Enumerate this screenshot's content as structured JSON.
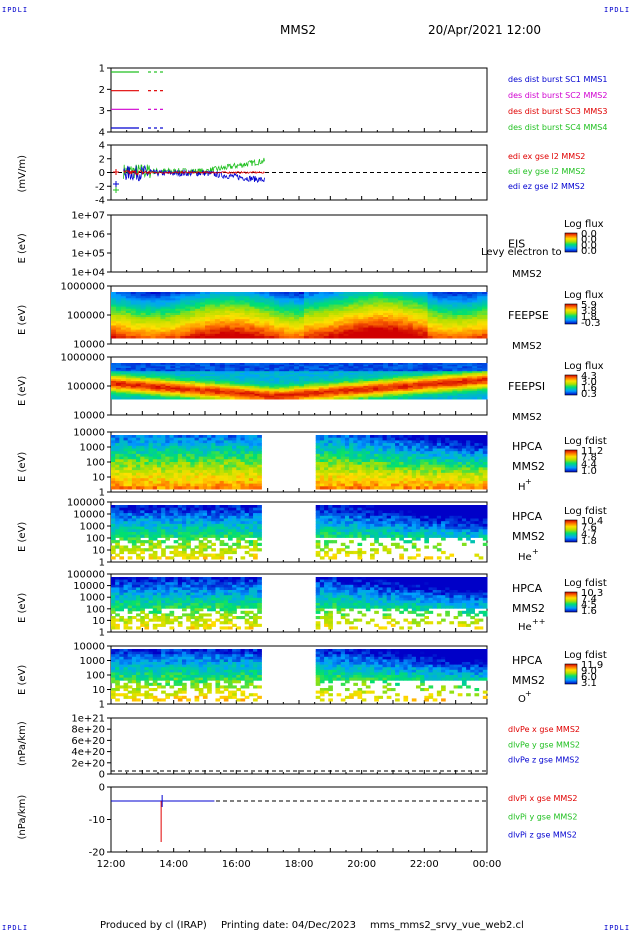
{
  "header": {
    "corner_tl": "IPDLI",
    "corner_tr": "IPDLI",
    "corner_bl": "IPDLI",
    "corner_br": "IPDLI",
    "spacecraft": "MMS2",
    "datetime": "20/Apr/2021 12:00"
  },
  "footer": {
    "produced_by": "Produced by cl (IRAP)",
    "printing_date": "Printing date: 04/Dec/2023",
    "script": "mms_mms2_srvy_vue_web2.cl"
  },
  "colors": {
    "red": "#e00000",
    "magenta": "#d000d0",
    "green": "#20c020",
    "blue": "#0000d0"
  },
  "chart_data": [
    {
      "type": "line",
      "panel": "burst",
      "yticks": [
        "1",
        "2",
        "3",
        "4"
      ],
      "ylim": [
        0.5,
        4.5
      ],
      "legend": [
        "des dist burst SC1 MMS1",
        "des dist burst SC2 MMS2",
        "des dist burst SC3 MMS3",
        "des dist burst SC4 MMS4"
      ],
      "legend_colors": [
        "#0000d0",
        "#d000d0",
        "#e00000",
        "#20c020"
      ]
    },
    {
      "type": "line",
      "panel": "edi",
      "ylabel": "(mV/m)",
      "yticks": [
        "4",
        "2",
        "0",
        "-2",
        "-4"
      ],
      "ylim": [
        -4.5,
        4.5
      ],
      "legend": [
        "edi ex gse l2 MMS2",
        "edi ey gse l2 MMS2",
        "edi ez gse l2 MMS2"
      ],
      "legend_colors": [
        "#e00000",
        "#20c020",
        "#0000d0"
      ]
    },
    {
      "type": "heatmap",
      "panel": "eis",
      "ylabel": "E (eV)",
      "yticks": [
        "1e+07",
        "1e+06",
        "1e+05",
        "1e+04"
      ],
      "right_labels": [
        "EIS",
        "MMS2"
      ],
      "overlay_label": "Levy electron to",
      "cbar_title": "Log flux",
      "cbar_values": [
        "0.0",
        "0.0",
        "0.0",
        "0.0"
      ]
    },
    {
      "type": "heatmap",
      "panel": "feepse",
      "ylabel": "E (eV)",
      "yticks": [
        "1000000",
        "100000",
        "10000"
      ],
      "right_labels": [
        "FEEPSE",
        "MMS2"
      ],
      "cbar_title": "Log flux",
      "cbar_values": [
        "5.9",
        "3.8",
        "1.8",
        "-0.3"
      ]
    },
    {
      "type": "heatmap",
      "panel": "feepsi",
      "ylabel": "E (eV)",
      "yticks": [
        "1000000",
        "100000",
        "10000"
      ],
      "right_labels": [
        "FEEPSI",
        "MMS2"
      ],
      "cbar_title": "Log flux",
      "cbar_values": [
        "4.3",
        "3.0",
        "1.6",
        "0.3"
      ]
    },
    {
      "type": "heatmap",
      "panel": "hpca_h",
      "ylabel": "E (eV)",
      "yticks": [
        "10000",
        "1000",
        "100",
        "10",
        "1"
      ],
      "right_labels": [
        "HPCA",
        "MMS2",
        "H",
        "+"
      ],
      "cbar_title": "Log fdist",
      "cbar_values": [
        "11.2",
        "7.8",
        "4.4",
        "1.0"
      ]
    },
    {
      "type": "heatmap",
      "panel": "hpca_he",
      "ylabel": "E (eV)",
      "yticks": [
        "100000",
        "10000",
        "1000",
        "100",
        "10",
        "1"
      ],
      "right_labels": [
        "HPCA",
        "MMS2",
        "He",
        "+"
      ],
      "cbar_title": "Log fdist",
      "cbar_values": [
        "10.4",
        "7.6",
        "4.7",
        "1.8"
      ]
    },
    {
      "type": "heatmap",
      "panel": "hpca_hepp",
      "ylabel": "E (eV)",
      "yticks": [
        "100000",
        "10000",
        "1000",
        "100",
        "10",
        "1"
      ],
      "right_labels": [
        "HPCA",
        "MMS2",
        "He",
        "++"
      ],
      "cbar_title": "Log fdist",
      "cbar_values": [
        "10.3",
        "7.4",
        "4.5",
        "1.6"
      ]
    },
    {
      "type": "heatmap",
      "panel": "hpca_o",
      "ylabel": "E (eV)",
      "yticks": [
        "10000",
        "1000",
        "100",
        "10",
        "1"
      ],
      "right_labels": [
        "HPCA",
        "MMS2",
        "O",
        "+"
      ],
      "cbar_title": "Log fdist",
      "cbar_values": [
        "11.9",
        "9.0",
        "6.0",
        "3.1"
      ]
    },
    {
      "type": "line",
      "panel": "divpe",
      "ylabel": "(nPa/km)",
      "yticks": [
        "1e+21",
        "8e+20",
        "6e+20",
        "4e+20",
        "2e+20",
        "0"
      ],
      "legend": [
        "dlvPe x gse MMS2",
        "dlvPe y gse MMS2",
        "dlvPe z gse MMS2"
      ],
      "legend_colors": [
        "#e00000",
        "#20c020",
        "#0000d0"
      ]
    },
    {
      "type": "line",
      "panel": "divpi",
      "ylabel": "(nPa/km)",
      "yticks": [
        "0",
        "-10",
        "-20"
      ],
      "ylim": [
        -23,
        2
      ],
      "legend": [
        "dlvPi x gse MMS2",
        "dlvPi y gse MMS2",
        "dlvPi z gse MMS2"
      ],
      "legend_colors": [
        "#e00000",
        "#20c020",
        "#0000d0"
      ]
    }
  ],
  "xaxis": {
    "ticks": [
      "12:00",
      "14:00",
      "16:00",
      "18:00",
      "20:00",
      "22:00",
      "00:00"
    ],
    "hours": [
      12,
      14,
      16,
      18,
      20,
      22,
      24
    ]
  }
}
